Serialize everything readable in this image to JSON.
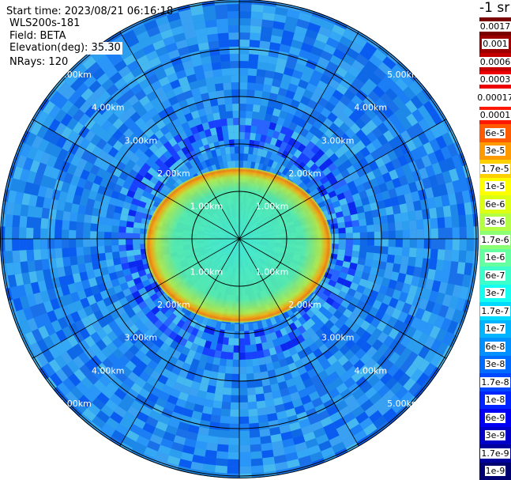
{
  "header": {
    "start_time": "Start time: 2023/08/21 06:16:18",
    "station": "WLS200s-181",
    "field": "Field: BETA",
    "elevation": "Elevation(deg): 35.30",
    "nrays": "NRays: 120",
    "units": "-1 sr"
  },
  "range_rings": {
    "labels": [
      "1.00km",
      "2.00km",
      "3.00km",
      "4.00km",
      "5.00km"
    ]
  },
  "legend": {
    "labels": [
      "0.0017",
      "0.001",
      "0.0006",
      "0.0003",
      "0.00017",
      "0.0001",
      "6e-5",
      "3e-5",
      "1.7e-5",
      "1e-5",
      "6e-6",
      "3e-6",
      "1.7e-6",
      "1e-6",
      "6e-7",
      "3e-7",
      "1.7e-7",
      "1e-7",
      "6e-8",
      "3e-8",
      "1.7e-8",
      "1e-8",
      "6e-9",
      "3e-9",
      "1.7e-9",
      "1e-9"
    ],
    "colors": [
      "#7a0000",
      "#9c0000",
      "#c40000",
      "#ee0000",
      "#ffffff",
      "#ff1800",
      "#ff5a00",
      "#ff9a00",
      "#ffd000",
      "#ffff00",
      "#dcff14",
      "#b4ff46",
      "#8cff74",
      "#64ffa0",
      "#3cffcc",
      "#14fff2",
      "#00daff",
      "#00b4ff",
      "#0090ff",
      "#006cff",
      "#0048ff",
      "#0024ff",
      "#0000f4",
      "#0000c8",
      "#00009c",
      "#000070"
    ]
  }
}
